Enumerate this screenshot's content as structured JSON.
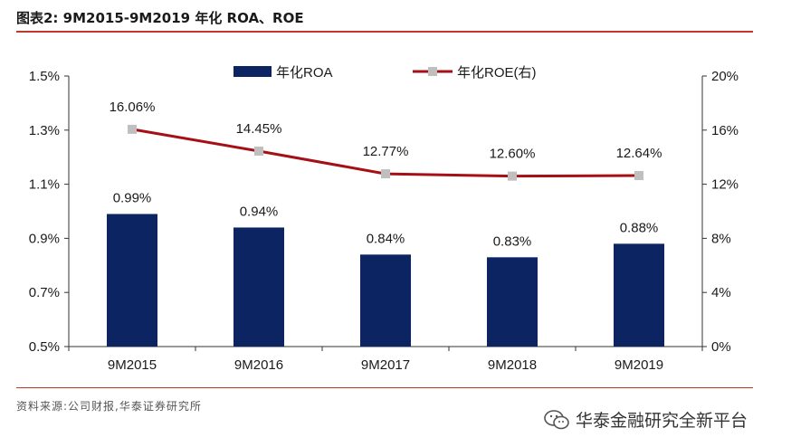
{
  "header": {
    "title": "图表2:  9M2015-9M2019 年化 ROA、ROE"
  },
  "footer": {
    "source": "资料来源:公司财报,华泰证券研究所",
    "watermark": "华泰金融研究全新平台"
  },
  "colors": {
    "bar": "#0c2461",
    "line": "#a50f15",
    "marker": "#bfbfbf",
    "rule": "#c0392b"
  },
  "chart_data": {
    "type": "bar",
    "categories": [
      "9M2015",
      "9M2016",
      "9M2017",
      "9M2018",
      "9M2019"
    ],
    "series": [
      {
        "name": "年化ROA",
        "type": "bar",
        "axis": "left",
        "values": [
          0.99,
          0.94,
          0.84,
          0.83,
          0.88
        ],
        "labels": [
          "0.99%",
          "0.94%",
          "0.84%",
          "0.83%",
          "0.88%"
        ]
      },
      {
        "name": "年化ROE(右)",
        "type": "line",
        "axis": "right",
        "values": [
          16.06,
          14.45,
          12.77,
          12.6,
          12.64
        ],
        "labels": [
          "16.06%",
          "14.45%",
          "12.77%",
          "12.60%",
          "12.64%"
        ]
      }
    ],
    "y_left": {
      "min": 0.5,
      "max": 1.5,
      "ticks": [
        "0.5%",
        "0.7%",
        "0.9%",
        "1.1%",
        "1.3%",
        "1.5%"
      ]
    },
    "y_right": {
      "min": 0,
      "max": 20,
      "ticks": [
        "0%",
        "4%",
        "8%",
        "12%",
        "16%",
        "20%"
      ]
    },
    "legend_position": "top-center",
    "grid": false
  }
}
